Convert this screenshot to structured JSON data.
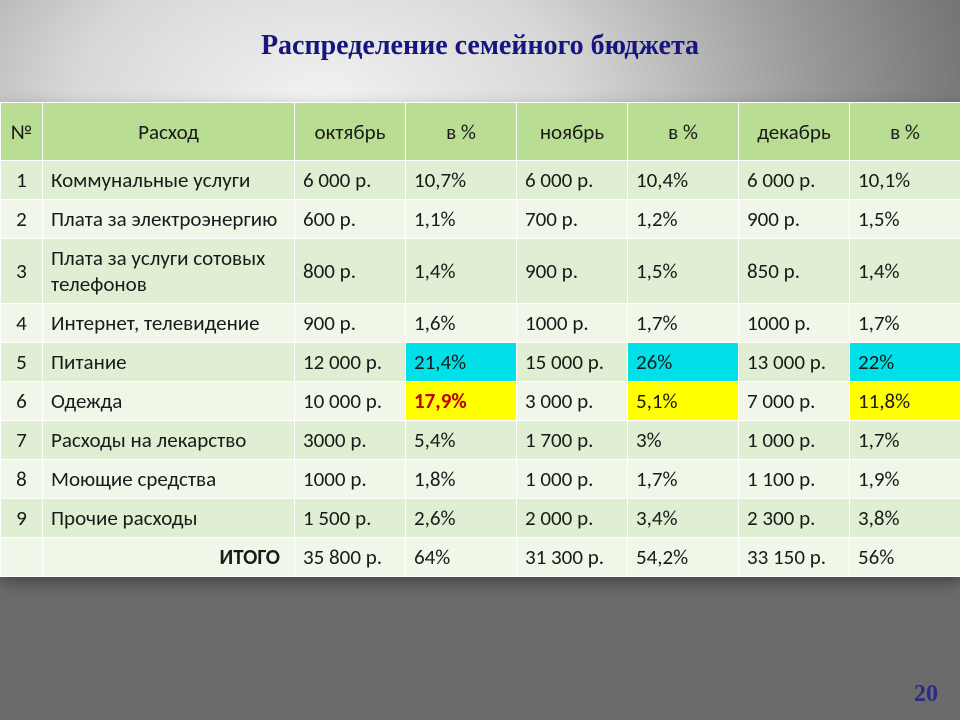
{
  "title": "Распределение семейного бюджета",
  "title_color": "#18157e",
  "page_number": "20",
  "page_number_color": "#2a2a88",
  "table": {
    "header_bg": "#b9dd93",
    "row_bg_odd": "#e0efd3",
    "row_bg_even": "#f0f7e9",
    "border_color": "#ffffff",
    "text_color": "#1a1a1a",
    "columns": [
      "№",
      "Расход",
      "октябрь",
      "в %",
      "ноябрь",
      "в %",
      "декабрь",
      "в %"
    ],
    "rows": [
      {
        "n": "1",
        "name": "Коммунальные услуги",
        "oct": "6 000 р.",
        "oct_p": "10,7%",
        "nov": "6 000 р.",
        "nov_p": "10,4%",
        "dec": "6 000 р.",
        "dec_p": "10,1%"
      },
      {
        "n": "2",
        "name": "Плата за электроэнергию",
        "oct": "600 р.",
        "oct_p": "1,1%",
        "nov": "700 р.",
        "nov_p": "1,2%",
        "dec": "900 р.",
        "dec_p": "1,5%"
      },
      {
        "n": "3",
        "name": "Плата за услуги сотовых телефонов",
        "oct": "800 р.",
        "oct_p": "1,4%",
        "nov": "900 р.",
        "nov_p": "1,5%",
        "dec": "850 р.",
        "dec_p": "1,4%"
      },
      {
        "n": "4",
        "name": "Интернет, телевидение",
        "oct": "900 р.",
        "oct_p": "1,6%",
        "nov": "1000 р.",
        "nov_p": "1,7%",
        "dec": "1000 р.",
        "dec_p": "1,7%"
      },
      {
        "n": "5",
        "name": "Питание",
        "oct": "12 000 р.",
        "oct_p": "21,4%",
        "nov": "15 000 р.",
        "nov_p": "26%",
        "dec": "13 000 р.",
        "dec_p": "22%",
        "hl": {
          "oct_p": "#00e0e8",
          "nov_p": "#00e0e8",
          "dec_p": "#00e0e8"
        }
      },
      {
        "n": "6",
        "name": "Одежда",
        "oct": "10 000 р.",
        "oct_p": "17,9%",
        "nov": "3 000 р.",
        "nov_p": "5,1%",
        "dec": "7 000 р.",
        "dec_p": "11,8%",
        "hl": {
          "oct_p": "#ffff00",
          "nov_p": "#ffff00",
          "dec_p": "#ffff00"
        },
        "oct_p_style": {
          "color": "#c00000",
          "bold": true
        }
      },
      {
        "n": "7",
        "name": "Расходы на лекарство",
        "oct": "3000 р.",
        "oct_p": "5,4%",
        "nov": "1 700 р.",
        "nov_p": "3%",
        "dec": "1 000 р.",
        "dec_p": "1,7%"
      },
      {
        "n": "8",
        "name": "Моющие средства",
        "oct": "1000 р.",
        "oct_p": "1,8%",
        "nov": "1 000 р.",
        "nov_p": "1,7%",
        "dec": "1 100 р.",
        "dec_p": "1,9%"
      },
      {
        "n": "9",
        "name": "Прочие расходы",
        "oct": "1 500 р.",
        "oct_p": "2,6%",
        "nov": "2 000 р.",
        "nov_p": "3,4%",
        "dec": "2 300 р.",
        "dec_p": "3,8%"
      }
    ],
    "total": {
      "label": "ИТОГО",
      "oct": "35 800 р.",
      "oct_p": "64%",
      "nov": "31 300 р.",
      "nov_p": "54,2%",
      "dec": "33 150 р.",
      "dec_p": "56%"
    }
  }
}
